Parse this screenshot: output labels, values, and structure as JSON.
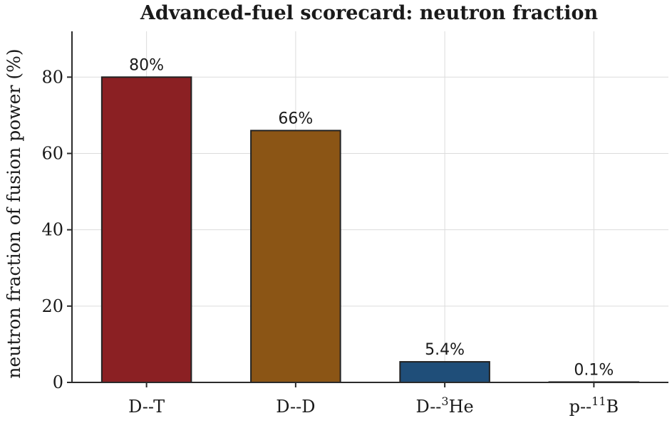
{
  "chart_data": {
    "type": "bar",
    "title": "Advanced-fuel scorecard: neutron fraction",
    "xlabel": "",
    "ylabel": "neutron fraction of fusion power (%)",
    "ylim": [
      0,
      92
    ],
    "yticks": [
      0,
      20,
      40,
      60,
      80
    ],
    "grid": true,
    "categories": [
      {
        "base": "D--",
        "sup": "",
        "rest": "T"
      },
      {
        "base": "D--",
        "sup": "",
        "rest": "D"
      },
      {
        "base": "D--",
        "sup": "3",
        "rest": "He"
      },
      {
        "base": "p--",
        "sup": "11",
        "rest": "B"
      }
    ],
    "values": [
      80,
      66,
      5.4,
      0.1
    ],
    "value_labels": [
      "80%",
      "66%",
      "5.4%",
      "0.1%"
    ],
    "colors": [
      "#8b2023",
      "#8b5515",
      "#1f4e79",
      "#2e8b57"
    ]
  }
}
